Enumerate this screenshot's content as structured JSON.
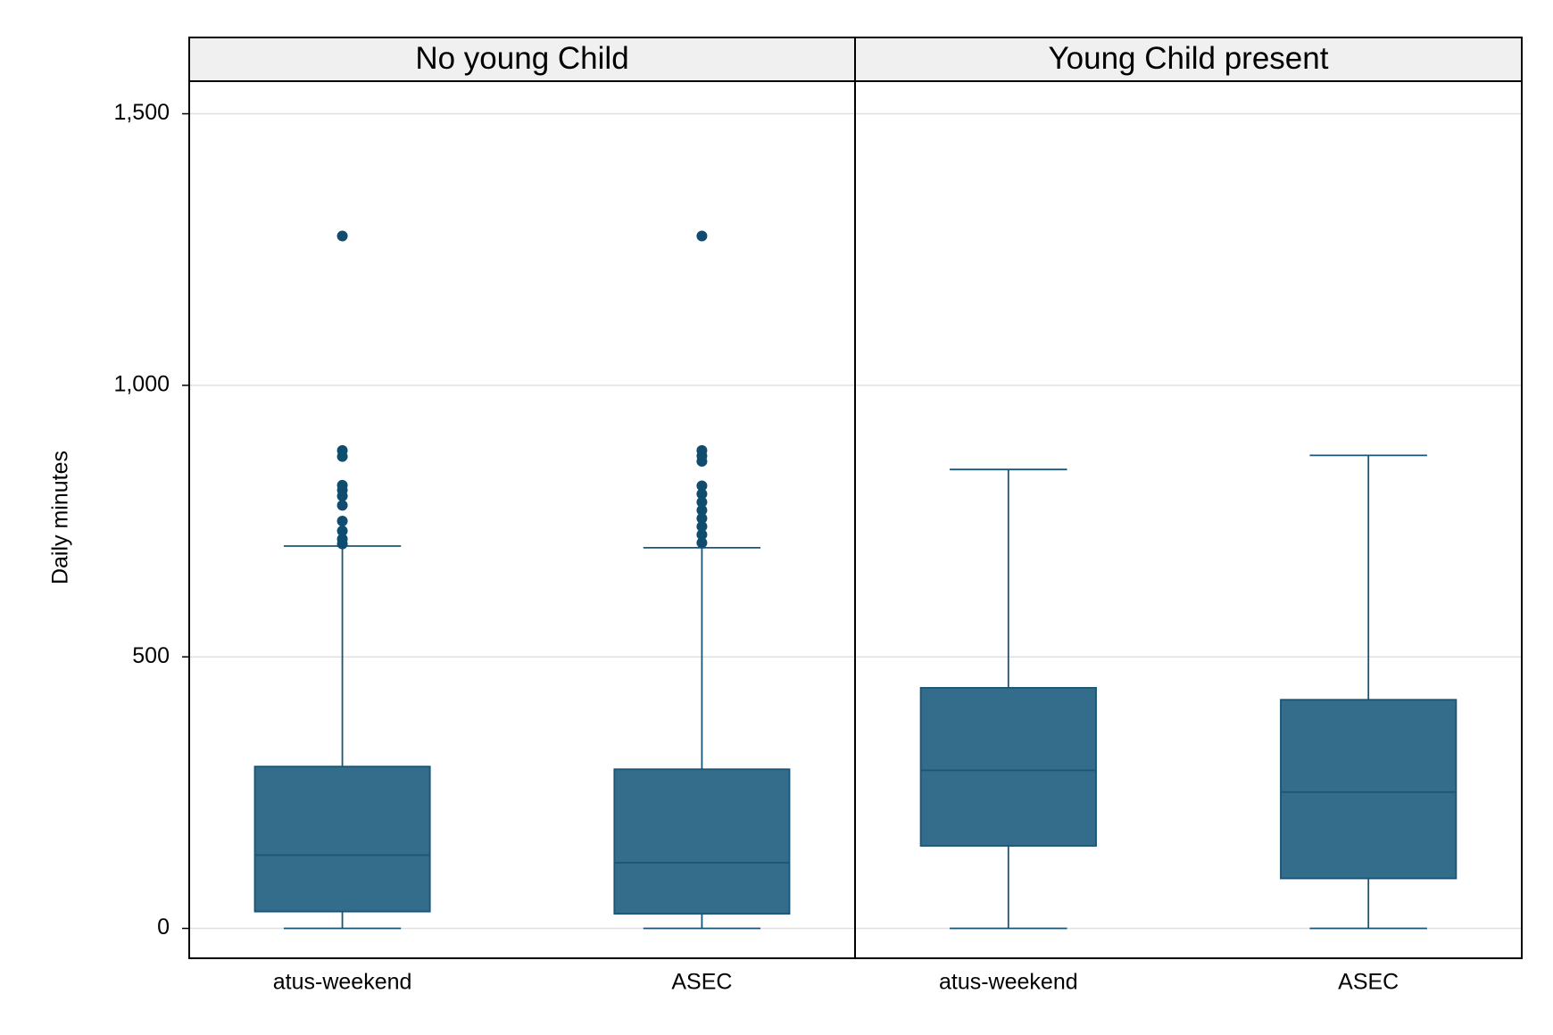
{
  "chart_data": [
    {
      "type": "box",
      "title": "No young Child",
      "ylabel": "Daily minutes",
      "categories": [
        "atus-weekend",
        "ASEC"
      ],
      "whisker_low": [
        0,
        0
      ],
      "q1": [
        31,
        27
      ],
      "median": [
        135,
        121
      ],
      "q3": [
        298,
        293
      ],
      "whisker_high": [
        704,
        701
      ],
      "outliers": [
        [
          1275,
          880,
          869,
          816,
          807,
          796,
          779,
          750,
          732,
          717,
          708
        ],
        [
          1275,
          880,
          870,
          860,
          815,
          800,
          785,
          770,
          755,
          740,
          725,
          710
        ]
      ],
      "color": "#336d8b",
      "edge_color": "#1a5576",
      "outlier_color": "#0f4c70",
      "ylim": [
        -55,
        1560
      ],
      "yticks": [
        0,
        500,
        {
          "value": 1000,
          "label": "1,000"
        },
        {
          "value": 1500,
          "label": "1,500"
        }
      ],
      "grid": true
    },
    {
      "type": "box",
      "title": "Young Child present",
      "categories": [
        "atus-weekend",
        "ASEC"
      ],
      "whisker_low": [
        0,
        0
      ],
      "q1": [
        152,
        92
      ],
      "median": [
        291,
        251
      ],
      "q3": [
        443,
        421
      ],
      "whisker_high": [
        845,
        871
      ],
      "outliers": [
        [],
        []
      ],
      "color": "#336d8b",
      "edge_color": "#1a5576",
      "outlier_color": "#0f4c70"
    }
  ]
}
